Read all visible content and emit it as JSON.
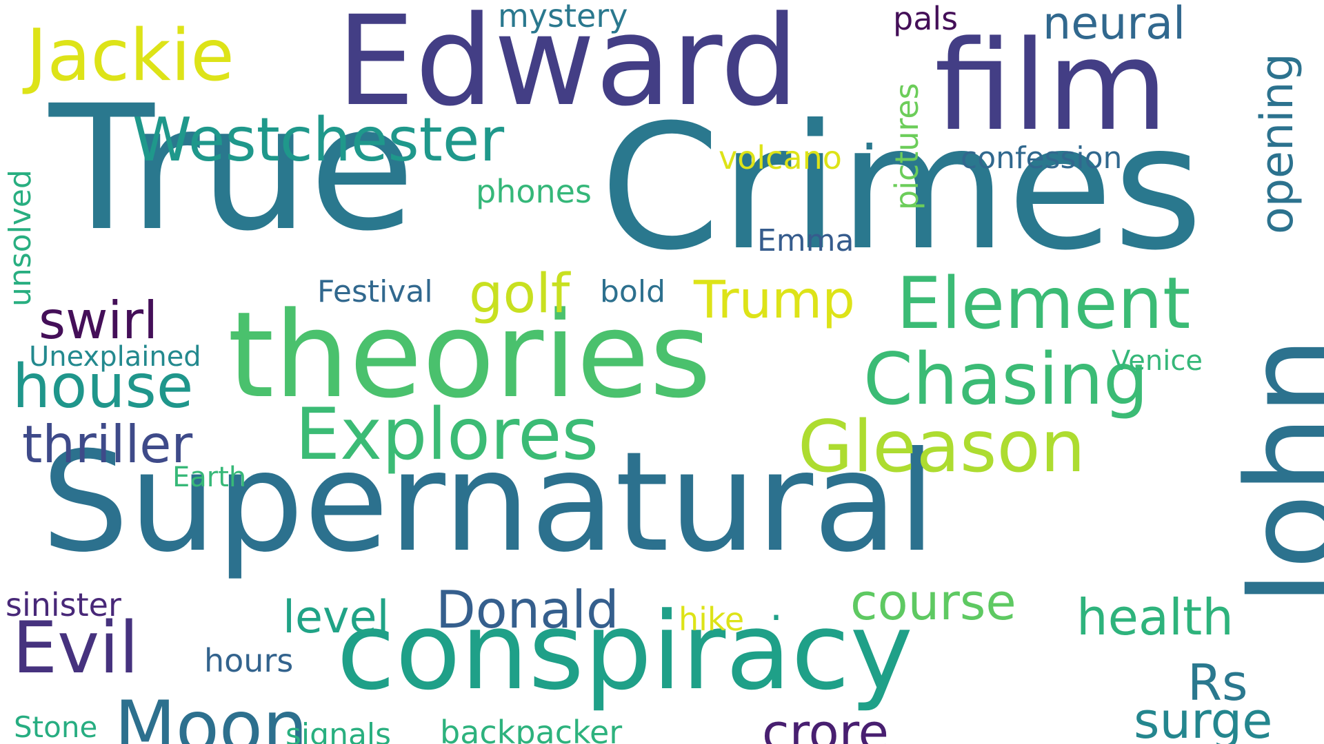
{
  "words": [
    {
      "id": "true",
      "text": "True",
      "color": "#2a788e"
    },
    {
      "id": "crimes",
      "text": "Crimes",
      "color": "#2a788e"
    },
    {
      "id": "supernatural",
      "text": "Supernatural",
      "color": "#2c718e"
    },
    {
      "id": "theories",
      "text": "theories",
      "color": "#4ac16d"
    },
    {
      "id": "edward",
      "text": "Edward",
      "color": "#433e85"
    },
    {
      "id": "film",
      "text": "film",
      "color": "#433e85"
    },
    {
      "id": "conspiracy",
      "text": "conspiracy",
      "color": "#1fa088"
    },
    {
      "id": "john",
      "text": "John",
      "color": "#2c728e"
    },
    {
      "id": "element",
      "text": "Element",
      "color": "#3bbb75"
    },
    {
      "id": "chasing",
      "text": "Chasing",
      "color": "#3bbb75"
    },
    {
      "id": "explores",
      "text": "Explores",
      "color": "#3bbb75"
    },
    {
      "id": "gleason",
      "text": "Gleason",
      "color": "#addc30"
    },
    {
      "id": "jackie",
      "text": "Jackie",
      "color": "#dde318"
    },
    {
      "id": "westchester",
      "text": "Westchester",
      "color": "#1f988b"
    },
    {
      "id": "house",
      "text": "house",
      "color": "#1f968b"
    },
    {
      "id": "evil",
      "text": "Evil",
      "color": "#46327e"
    },
    {
      "id": "moon",
      "text": "Moon",
      "color": "#2d708e"
    },
    {
      "id": "thriller",
      "text": "thriller",
      "color": "#3e4a89"
    },
    {
      "id": "swirl",
      "text": "swirl",
      "color": "#440f58"
    },
    {
      "id": "golf",
      "text": "golf",
      "color": "#c8e020"
    },
    {
      "id": "trump",
      "text": "Trump",
      "color": "#dde318"
    },
    {
      "id": "donald",
      "text": "Donald",
      "color": "#355f8d"
    },
    {
      "id": "course",
      "text": "course",
      "color": "#5ec962"
    },
    {
      "id": "health",
      "text": "health",
      "color": "#2eb37c"
    },
    {
      "id": "surge",
      "text": "surge",
      "color": "#24868e"
    },
    {
      "id": "rs",
      "text": "Rs",
      "color": "#2a788e"
    },
    {
      "id": "crore",
      "text": "crore",
      "color": "#481f70"
    },
    {
      "id": "level",
      "text": "level",
      "color": "#20a386"
    },
    {
      "id": "neural",
      "text": "neural",
      "color": "#31688e"
    },
    {
      "id": "opening",
      "text": "opening",
      "color": "#2c728e"
    },
    {
      "id": "pals",
      "text": "pals",
      "color": "#440f58"
    },
    {
      "id": "mystery",
      "text": "mystery",
      "color": "#2a788e"
    },
    {
      "id": "pictures",
      "text": "pictures",
      "color": "#6ccd5a"
    },
    {
      "id": "confession",
      "text": "confession",
      "color": "#31688e"
    },
    {
      "id": "volcano",
      "text": "volcano",
      "color": "#dde318"
    },
    {
      "id": "phones",
      "text": "phones",
      "color": "#35b779"
    },
    {
      "id": "emma",
      "text": "Emma",
      "color": "#365c8d"
    },
    {
      "id": "festival",
      "text": "Festival",
      "color": "#31688e"
    },
    {
      "id": "bold",
      "text": "bold",
      "color": "#2d708e"
    },
    {
      "id": "unsolved",
      "text": "unsolved",
      "color": "#28ae80"
    },
    {
      "id": "unexplained",
      "text": "Unexplained",
      "color": "#23898e"
    },
    {
      "id": "venice",
      "text": "Venice",
      "color": "#35b779"
    },
    {
      "id": "earth",
      "text": "Earth",
      "color": "#37b878"
    },
    {
      "id": "sinister",
      "text": "sinister",
      "color": "#482878"
    },
    {
      "id": "hours",
      "text": "hours",
      "color": "#33638d"
    },
    {
      "id": "hike",
      "text": "hike",
      "color": "#dde318"
    },
    {
      "id": "stone",
      "text": "Stone",
      "color": "#27ad81"
    },
    {
      "id": "signals",
      "text": "signals",
      "color": "#29af7f"
    },
    {
      "id": "backpacker",
      "text": "backpacker",
      "color": "#2db27d"
    },
    {
      "id": "dot1",
      "text": ".",
      "color": "#2a788e"
    },
    {
      "id": "dot2",
      "text": ".",
      "color": "#1fa088"
    }
  ]
}
